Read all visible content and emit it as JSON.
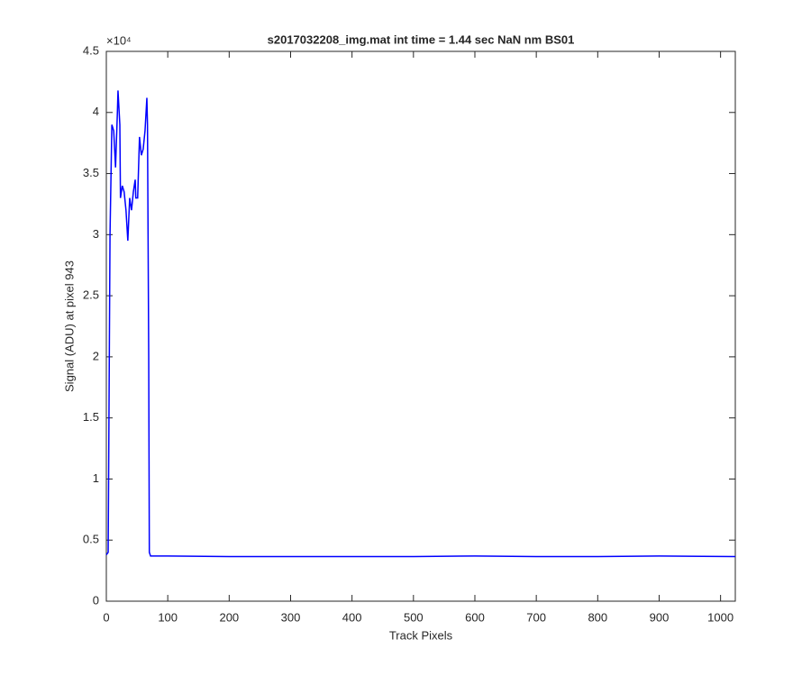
{
  "chart_data": {
    "type": "line",
    "title": "s2017032208_img.mat int time = 1.44 sec  NaN nm BS01",
    "x_label": "Track Pixels",
    "y_label": "Signal (ADU) at pixel 943",
    "y_scale_label": "×10⁴",
    "xlim": [
      0,
      1024
    ],
    "ylim": [
      0,
      4.5
    ],
    "xticks": [
      0,
      100,
      200,
      300,
      400,
      500,
      600,
      700,
      800,
      900,
      1000
    ],
    "yticks": [
      0,
      0.5,
      1,
      1.5,
      2,
      2.5,
      3,
      3.5,
      4,
      4.5
    ],
    "x": [
      0,
      3,
      6,
      9,
      12,
      15,
      18,
      19,
      22,
      23,
      26,
      29,
      32,
      35,
      38,
      41,
      44,
      47,
      48,
      51,
      54,
      57,
      60,
      63,
      66,
      67,
      69,
      70,
      72,
      100,
      200,
      300,
      400,
      500,
      600,
      700,
      800,
      900,
      1024
    ],
    "series": [
      {
        "name": "Signal",
        "color": "#0000ff",
        "values": [
          0.38,
          0.4,
          3.0,
          3.9,
          3.85,
          3.55,
          4.0,
          4.18,
          3.9,
          3.3,
          3.4,
          3.35,
          3.2,
          2.95,
          3.3,
          3.2,
          3.35,
          3.45,
          3.3,
          3.3,
          3.8,
          3.65,
          3.7,
          3.85,
          4.12,
          3.9,
          2.0,
          0.4,
          0.37,
          0.37,
          0.365,
          0.365,
          0.365,
          0.365,
          0.37,
          0.365,
          0.365,
          0.37,
          0.365
        ]
      }
    ]
  }
}
